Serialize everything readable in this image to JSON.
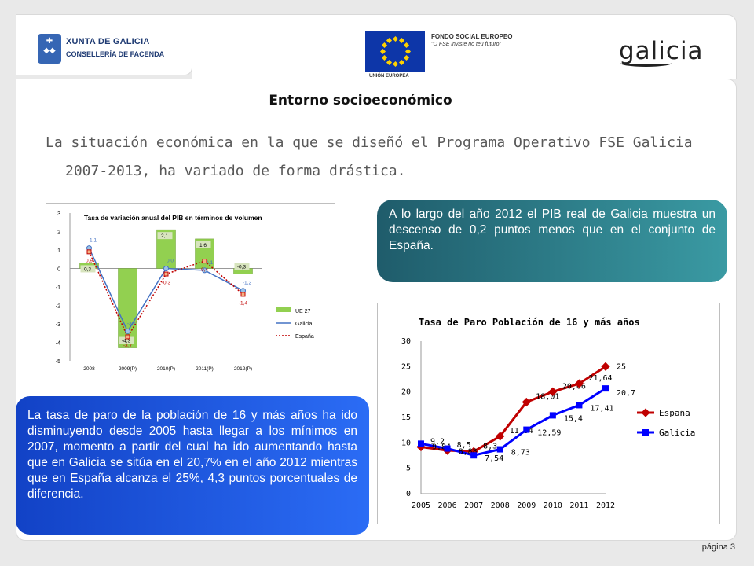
{
  "header": {
    "xunta_name": "XUNTA DE GALICIA",
    "conselleria": "CONSELLERÍA DE FACENDA",
    "fse_title": "FONDO SOCIAL EUROPEO",
    "fse_motto": "\"O FSE inviste no teu futuro\"",
    "eu_label": "UNIÓN EUROPEA",
    "galicia_logo": "galicia"
  },
  "page": {
    "title": "Entorno socioeconómico",
    "intro": "La situación económica en la que se diseñó el Programa Operativo FSE Galicia 2007-2013, ha variado de forma drástica.",
    "page_number": "página 3"
  },
  "callouts": {
    "pib": "A lo largo del año 2012 el PIB real de Galicia muestra un descenso de 0,2 puntos menos que en el conjunto de España.",
    "paro": "La tasa de paro de la población de 16 y más años ha ido disminuyendo desde 2005 hasta llegar a los mínimos en 2007, momento a partir del cual ha ido aumentando hasta que en Galicia se sitúa en el 20,7% en el año 2012 mientras que en España alcanza el 25%, 4,3 puntos porcentuales de diferencia."
  },
  "chart_data": [
    {
      "type": "bar",
      "title": "Tasa de variación anual del PIB en términos de volumen",
      "categories": [
        "2008",
        "2009(P)",
        "2010(P)",
        "2011(P)",
        "2012(P)"
      ],
      "ylim": [
        -5,
        3
      ],
      "yticks": [
        "3",
        "2",
        "1",
        "0",
        "-1",
        "-2",
        "-3",
        "-4",
        "-5"
      ],
      "series": [
        {
          "name": "UE 27",
          "kind": "bar",
          "color": "#92d050",
          "values": [
            0.3,
            -4.3,
            2.1,
            1.6,
            -0.3
          ],
          "labels": [
            "0,3",
            "-4,3",
            "2,1",
            "1,6",
            "-0,3"
          ]
        },
        {
          "name": "Galicia",
          "kind": "line",
          "color": "#4472c4",
          "values": [
            1.1,
            -3.4,
            0.0,
            -0.1,
            -1.2
          ],
          "labels": [
            "1,1",
            "-3,4",
            "0,0",
            "-0,1",
            "-1,2"
          ]
        },
        {
          "name": "España",
          "kind": "dotted-line",
          "color": "#c00000",
          "values": [
            0.9,
            -3.7,
            -0.3,
            0.4,
            -1.4
          ],
          "labels": [
            "0,9",
            "-3,7",
            "-0,3",
            "0,4",
            "-1,4"
          ]
        }
      ],
      "legend": "right"
    },
    {
      "type": "line",
      "title": "Tasa de Paro Población de 16 y más años",
      "categories": [
        "2005",
        "2006",
        "2007",
        "2008",
        "2009",
        "2010",
        "2011",
        "2012"
      ],
      "ylim": [
        0,
        30
      ],
      "yticks": [
        "30",
        "25",
        "20",
        "15",
        "10",
        "5",
        "0"
      ],
      "series": [
        {
          "name": "España",
          "color": "#c00000",
          "values": [
            9.2,
            8.5,
            8.3,
            11.3,
            18.01,
            20.06,
            21.64,
            25
          ],
          "labels": [
            "9,2",
            "8,5",
            "8,3",
            "11,34",
            "18,01",
            "20,06",
            "21,64",
            "25"
          ]
        },
        {
          "name": "Galicia",
          "color": "#0000ff",
          "values": [
            9.84,
            8.88,
            7.54,
            8.73,
            12.59,
            15.4,
            17.41,
            20.7
          ],
          "labels": [
            "9,84",
            "8,88",
            "7,54",
            "8,73",
            "12,59",
            "15,4",
            "17,41",
            "20,7"
          ]
        }
      ],
      "legend": "right"
    }
  ]
}
